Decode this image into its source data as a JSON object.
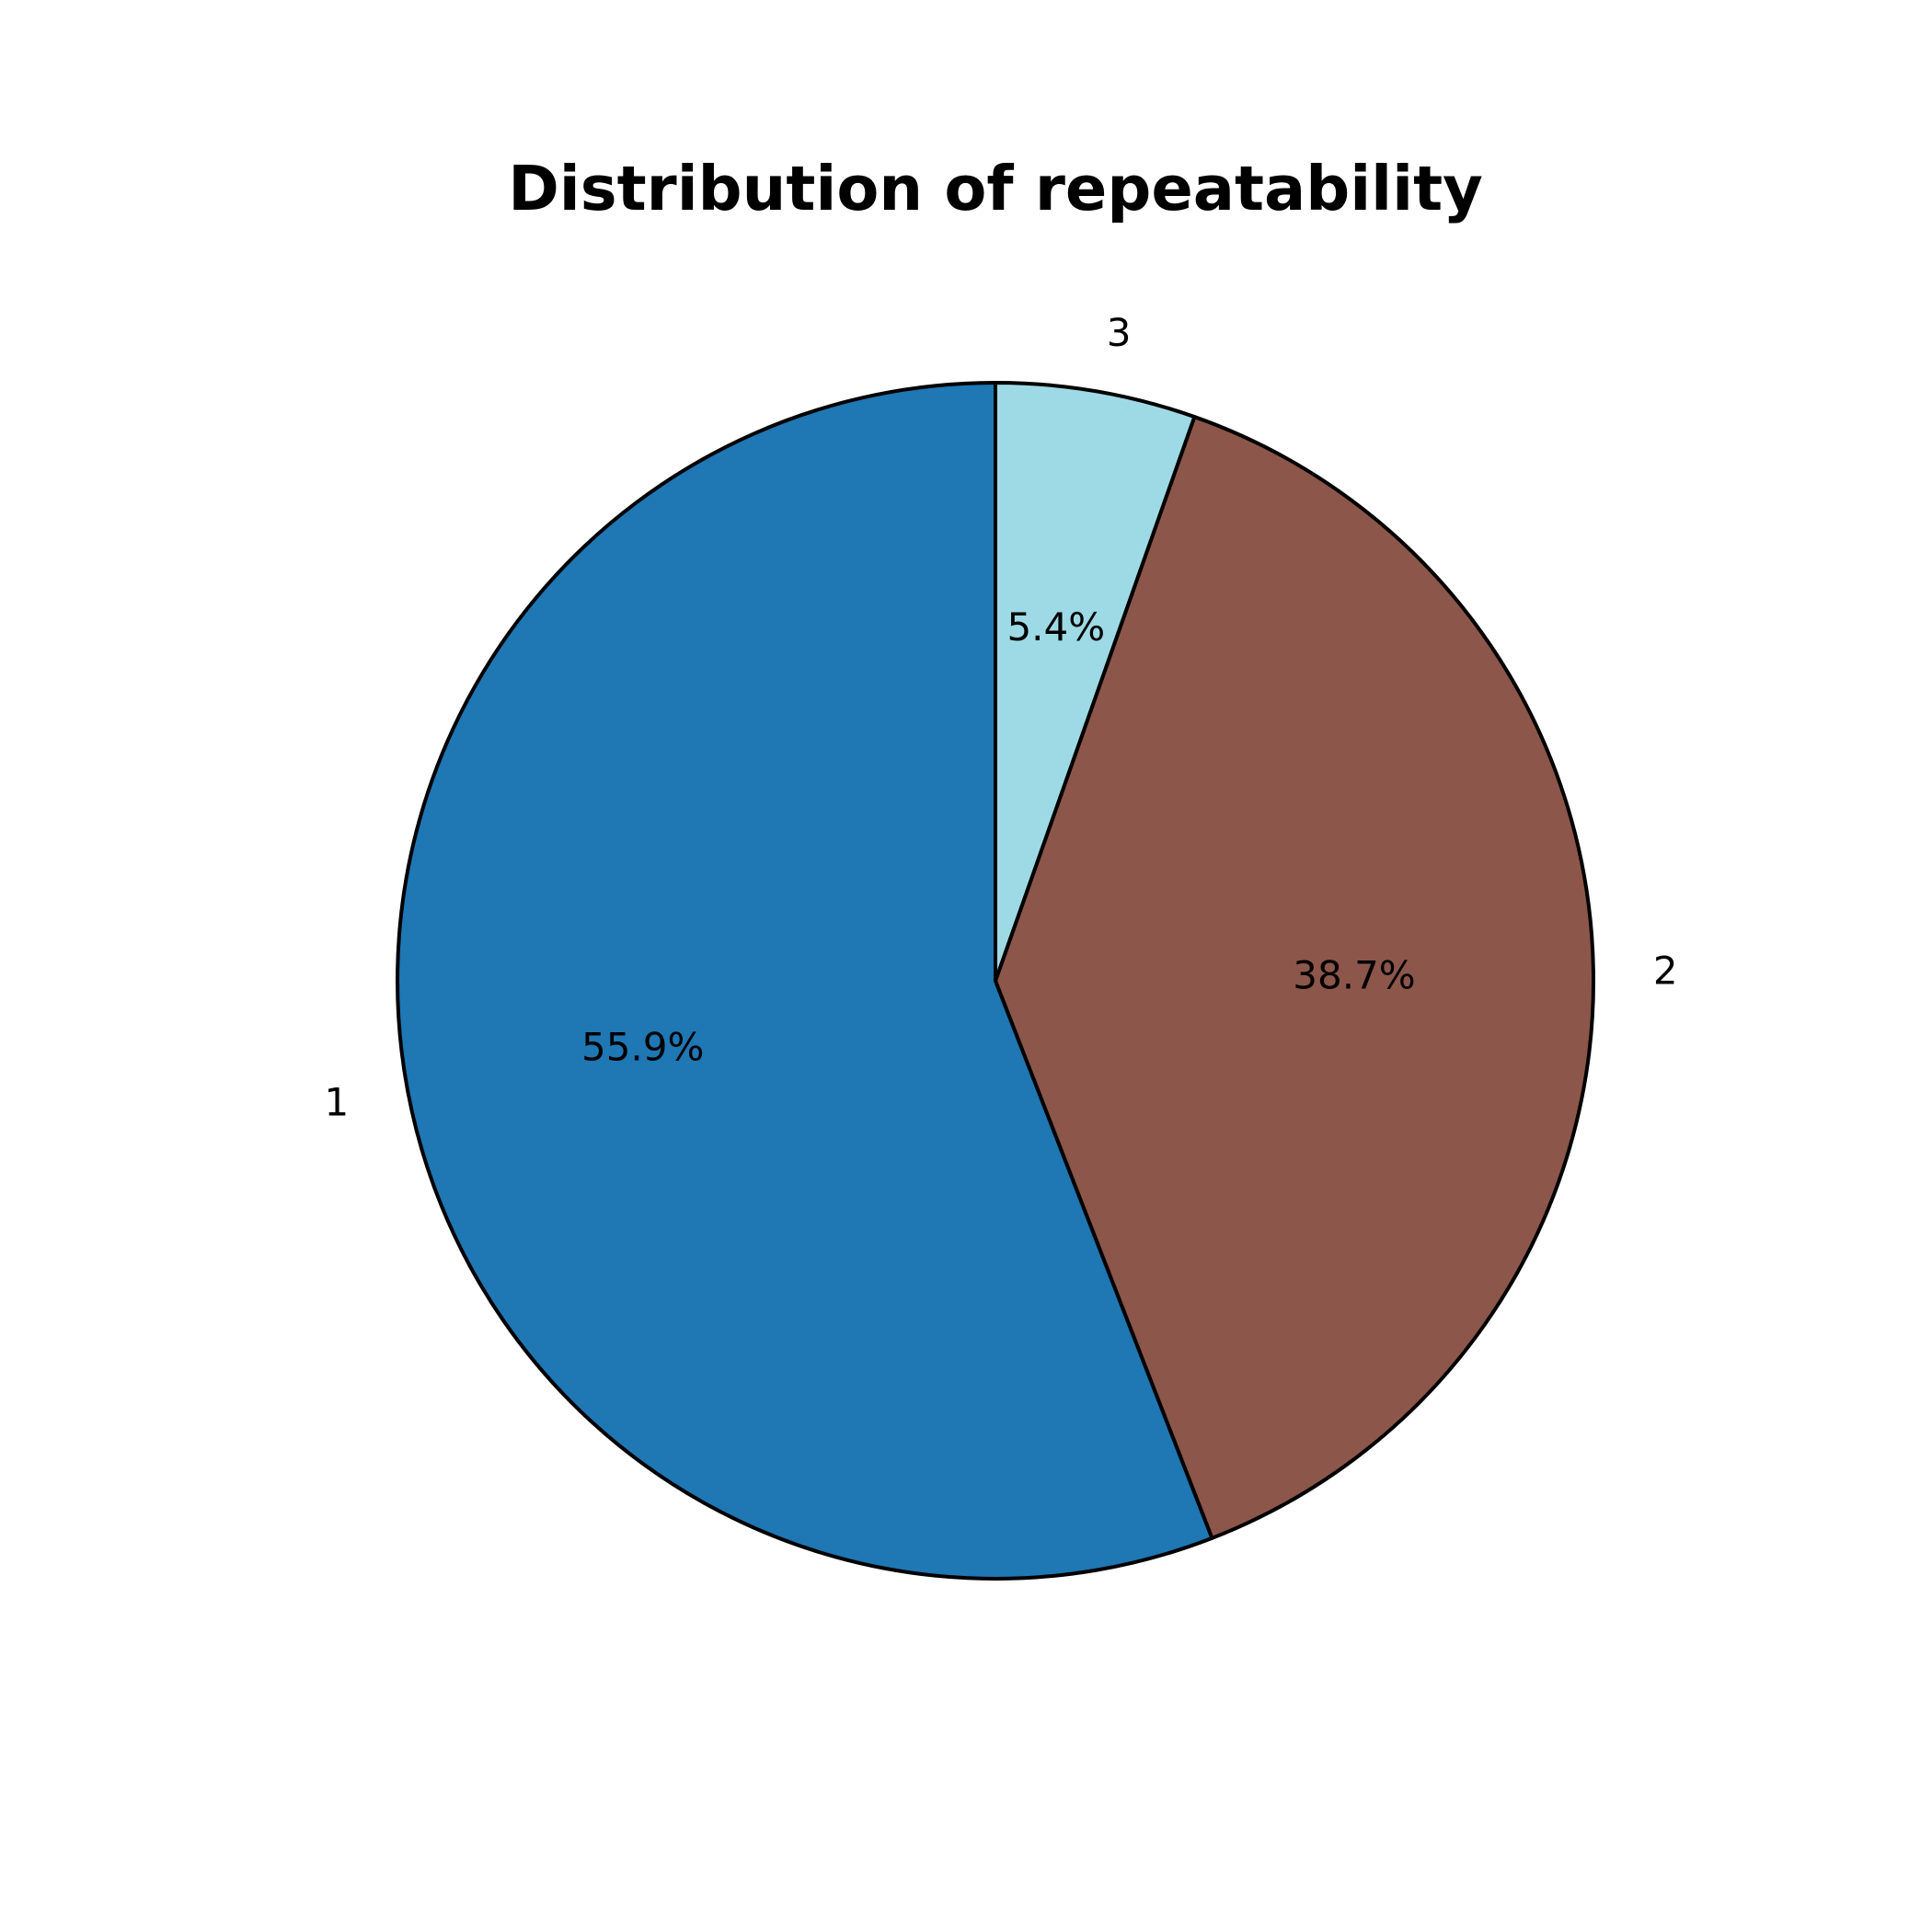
{
  "chart_data": {
    "type": "pie",
    "title": "Distribution of repeatability",
    "start_angle_deg": 90,
    "direction": "counterclockwise",
    "slices": [
      {
        "label": "1",
        "value": 55.9,
        "pct_label": "55.9%",
        "color": "#1f77b4"
      },
      {
        "label": "2",
        "value": 38.7,
        "pct_label": "38.7%",
        "color": "#8c564b"
      },
      {
        "label": "3",
        "value": 5.4,
        "pct_label": "5.4%",
        "color": "#9edae5"
      }
    ]
  }
}
